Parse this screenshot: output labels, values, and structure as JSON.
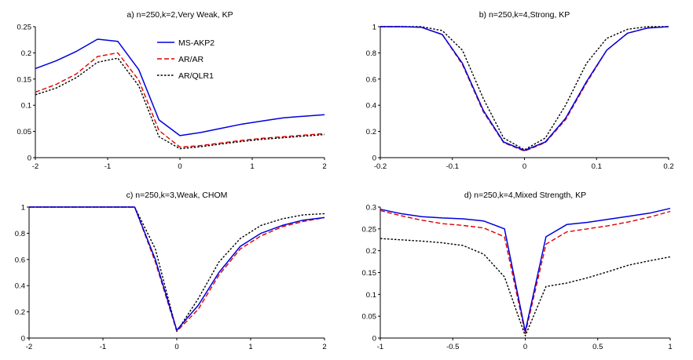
{
  "chart_data": [
    {
      "type": "line",
      "title": "a) n=250,k=2,Very Weak, KP",
      "xlabel": "",
      "ylabel": "",
      "xlim": [
        -2,
        2
      ],
      "ylim": [
        0,
        0.25
      ],
      "xticks": [
        -2,
        -1,
        0,
        1,
        2
      ],
      "xtick_labels": [
        "-2",
        "-1",
        "0",
        "1",
        "2"
      ],
      "yticks": [
        0,
        0.05,
        0.1,
        0.15,
        0.2,
        0.25
      ],
      "ytick_labels": [
        "0",
        "0.05",
        "0.1",
        "0.15",
        "0.2",
        "0.25"
      ],
      "legend": "top-center",
      "series": [
        {
          "name": "MS-AKP2",
          "color": "#0000dd",
          "style": "solid",
          "x": [
            -2,
            -1.71,
            -1.43,
            -1.14,
            -0.86,
            -0.57,
            -0.29,
            0,
            0.29,
            0.57,
            0.86,
            1.14,
            1.43,
            1.71,
            2
          ],
          "y": [
            0.17,
            0.185,
            0.203,
            0.226,
            0.222,
            0.168,
            0.072,
            0.042,
            0.048,
            0.056,
            0.064,
            0.07,
            0.076,
            0.079,
            0.082
          ]
        },
        {
          "name": "AR/AR",
          "color": "#dd0000",
          "style": "dashed",
          "x": [
            -2,
            -1.71,
            -1.43,
            -1.14,
            -0.86,
            -0.57,
            -0.29,
            0,
            0.29,
            0.57,
            0.86,
            1.14,
            1.43,
            1.71,
            2
          ],
          "y": [
            0.125,
            0.14,
            0.16,
            0.193,
            0.2,
            0.148,
            0.052,
            0.02,
            0.023,
            0.028,
            0.033,
            0.037,
            0.04,
            0.043,
            0.046
          ]
        },
        {
          "name": "AR/QLR1",
          "color": "#000000",
          "style": "dotted",
          "x": [
            -2,
            -1.71,
            -1.43,
            -1.14,
            -0.86,
            -0.57,
            -0.29,
            0,
            0.29,
            0.57,
            0.86,
            1.14,
            1.43,
            1.71,
            2
          ],
          "y": [
            0.12,
            0.133,
            0.153,
            0.182,
            0.19,
            0.137,
            0.04,
            0.017,
            0.021,
            0.026,
            0.031,
            0.035,
            0.038,
            0.041,
            0.044
          ]
        }
      ]
    },
    {
      "type": "line",
      "title": "b) n=250,k=4,Strong, KP",
      "xlabel": "",
      "ylabel": "",
      "xlim": [
        -0.2,
        0.2
      ],
      "ylim": [
        0,
        1
      ],
      "xticks": [
        -0.2,
        -0.1,
        0,
        0.1,
        0.2
      ],
      "xtick_labels": [
        "-0.2",
        "-0.1",
        "0",
        "0.1",
        "0.2"
      ],
      "yticks": [
        0,
        0.2,
        0.4,
        0.6,
        0.8,
        1
      ],
      "ytick_labels": [
        "0",
        "0.2",
        "0.4",
        "0.6",
        "0.8",
        "1"
      ],
      "series": [
        {
          "name": "MS-AKP2",
          "color": "#0000dd",
          "style": "solid",
          "x": [
            -0.2,
            -0.171,
            -0.143,
            -0.114,
            -0.086,
            -0.057,
            -0.029,
            0,
            0.029,
            0.057,
            0.086,
            0.114,
            0.143,
            0.171,
            0.2
          ],
          "y": [
            1,
            1,
            0.995,
            0.94,
            0.72,
            0.36,
            0.12,
            0.055,
            0.12,
            0.3,
            0.58,
            0.82,
            0.95,
            0.99,
            1
          ]
        },
        {
          "name": "AR/AR",
          "color": "#dd0000",
          "style": "dashed",
          "x": [
            -0.2,
            -0.171,
            -0.143,
            -0.114,
            -0.086,
            -0.057,
            -0.029,
            0,
            0.029,
            0.057,
            0.086,
            0.114,
            0.143,
            0.171,
            0.2
          ],
          "y": [
            1,
            1,
            0.995,
            0.94,
            0.71,
            0.35,
            0.115,
            0.05,
            0.115,
            0.29,
            0.57,
            0.82,
            0.95,
            0.99,
            1
          ]
        },
        {
          "name": "AR/QLR1",
          "color": "#000000",
          "style": "dotted",
          "x": [
            -0.2,
            -0.171,
            -0.143,
            -0.114,
            -0.086,
            -0.057,
            -0.029,
            0,
            0.029,
            0.057,
            0.086,
            0.114,
            0.143,
            0.171,
            0.2
          ],
          "y": [
            1,
            1,
            1,
            0.97,
            0.82,
            0.45,
            0.15,
            0.06,
            0.15,
            0.4,
            0.72,
            0.91,
            0.98,
            1,
            1
          ]
        }
      ]
    },
    {
      "type": "line",
      "title": "c) n=250,k=3,Weak, CHOM",
      "xlabel": "",
      "ylabel": "",
      "xlim": [
        -2,
        2
      ],
      "ylim": [
        0,
        1
      ],
      "xticks": [
        -2,
        -1,
        0,
        1,
        2
      ],
      "xtick_labels": [
        "-2",
        "-1",
        "0",
        "1",
        "2"
      ],
      "yticks": [
        0,
        0.2,
        0.4,
        0.6,
        0.8,
        1
      ],
      "ytick_labels": [
        "0",
        "0.2",
        "0.4",
        "0.6",
        "0.8",
        "1"
      ],
      "series": [
        {
          "name": "MS-AKP2",
          "color": "#0000dd",
          "style": "solid",
          "x": [
            -2,
            -1.71,
            -1.43,
            -1.14,
            -0.86,
            -0.57,
            -0.29,
            0,
            0.29,
            0.57,
            0.86,
            1.14,
            1.43,
            1.71,
            2
          ],
          "y": [
            1,
            1,
            1,
            1,
            1,
            1,
            0.6,
            0.06,
            0.25,
            0.5,
            0.7,
            0.8,
            0.86,
            0.9,
            0.92
          ]
        },
        {
          "name": "AR/AR",
          "color": "#dd0000",
          "style": "dashed",
          "x": [
            -2,
            -1.71,
            -1.43,
            -1.14,
            -0.86,
            -0.57,
            -0.29,
            0,
            0.29,
            0.57,
            0.86,
            1.14,
            1.43,
            1.71,
            2
          ],
          "y": [
            1,
            1,
            1,
            1,
            1,
            1,
            0.58,
            0.05,
            0.22,
            0.48,
            0.68,
            0.78,
            0.85,
            0.89,
            0.92
          ]
        },
        {
          "name": "AR/QLR1",
          "color": "#000000",
          "style": "dotted",
          "x": [
            -2,
            -1.71,
            -1.43,
            -1.14,
            -0.86,
            -0.57,
            -0.29,
            0,
            0.29,
            0.57,
            0.86,
            1.14,
            1.43,
            1.71,
            2
          ],
          "y": [
            1,
            1,
            1,
            1,
            1,
            1,
            0.68,
            0.05,
            0.3,
            0.58,
            0.76,
            0.86,
            0.91,
            0.94,
            0.95
          ]
        }
      ]
    },
    {
      "type": "line",
      "title": "d) n=250,k=4,Mixed Strength, KP",
      "xlabel": "",
      "ylabel": "",
      "xlim": [
        -1,
        1
      ],
      "ylim": [
        0,
        0.3
      ],
      "xticks": [
        -1,
        -0.5,
        0,
        0.5,
        1
      ],
      "xtick_labels": [
        "-1",
        "-0.5",
        "0",
        "0.5",
        "1"
      ],
      "yticks": [
        0,
        0.05,
        0.1,
        0.15,
        0.2,
        0.25,
        0.3
      ],
      "ytick_labels": [
        "0",
        "0.05",
        "0.1",
        "0.15",
        "0.2",
        "0.25",
        "0.3"
      ],
      "series": [
        {
          "name": "MS-AKP2",
          "color": "#0000dd",
          "style": "solid",
          "x": [
            -1,
            -0.857,
            -0.714,
            -0.571,
            -0.429,
            -0.286,
            -0.143,
            0,
            0.143,
            0.286,
            0.429,
            0.571,
            0.714,
            0.857,
            1
          ],
          "y": [
            0.295,
            0.285,
            0.278,
            0.275,
            0.273,
            0.268,
            0.25,
            0.015,
            0.232,
            0.26,
            0.265,
            0.272,
            0.279,
            0.286,
            0.297
          ]
        },
        {
          "name": "AR/AR",
          "color": "#dd0000",
          "style": "dashed",
          "x": [
            -1,
            -0.857,
            -0.714,
            -0.571,
            -0.429,
            -0.286,
            -0.143,
            0,
            0.143,
            0.286,
            0.429,
            0.571,
            0.714,
            0.857,
            1
          ],
          "y": [
            0.292,
            0.28,
            0.27,
            0.262,
            0.258,
            0.252,
            0.232,
            0.01,
            0.215,
            0.243,
            0.25,
            0.257,
            0.266,
            0.277,
            0.29
          ]
        },
        {
          "name": "AR/QLR1",
          "color": "#000000",
          "style": "dotted",
          "x": [
            -1,
            -0.857,
            -0.714,
            -0.571,
            -0.429,
            -0.286,
            -0.143,
            0,
            0.143,
            0.286,
            0.429,
            0.571,
            0.714,
            0.857,
            1
          ],
          "y": [
            0.228,
            0.225,
            0.222,
            0.218,
            0.212,
            0.192,
            0.14,
            0.005,
            0.118,
            0.126,
            0.138,
            0.152,
            0.167,
            0.177,
            0.186
          ]
        }
      ]
    }
  ]
}
